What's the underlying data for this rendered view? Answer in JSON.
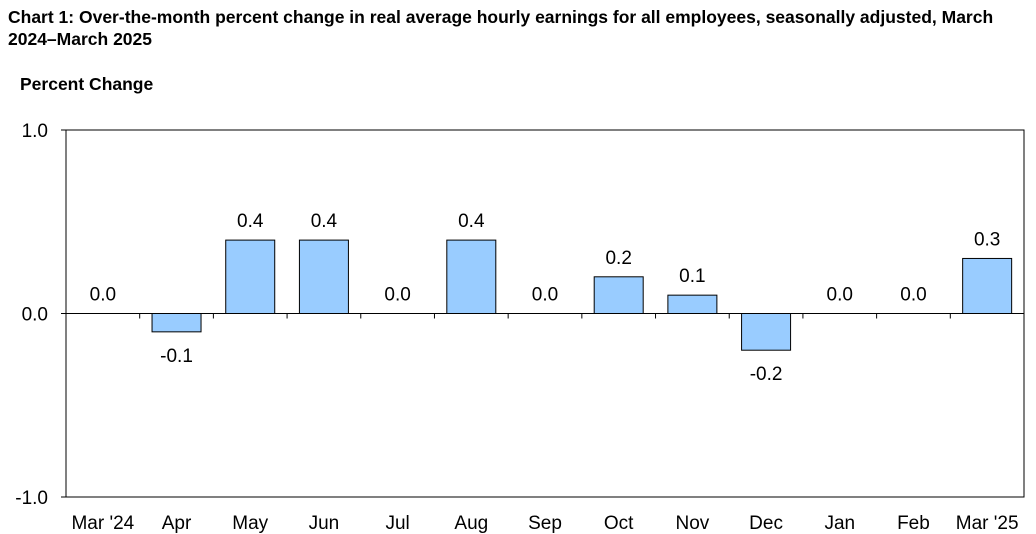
{
  "chart_data": {
    "type": "bar",
    "title": "Chart 1: Over-the-month percent change in real average hourly earnings for all employees, seasonally adjusted, March 2024–March 2025",
    "ylabel": "Percent Change",
    "xlabel": "",
    "categories": [
      "Mar '24",
      "Apr",
      "May",
      "Jun",
      "Jul",
      "Aug",
      "Sep",
      "Oct",
      "Nov",
      "Dec",
      "Jan",
      "Feb",
      "Mar '25"
    ],
    "values": [
      0.0,
      -0.1,
      0.4,
      0.4,
      0.0,
      0.4,
      0.0,
      0.2,
      0.1,
      -0.2,
      0.0,
      0.0,
      0.3
    ],
    "data_labels": [
      "0.0",
      "-0.1",
      "0.4",
      "0.4",
      "0.0",
      "0.4",
      "0.0",
      "0.2",
      "0.1",
      "-0.2",
      "0.0",
      "0.0",
      "0.3"
    ],
    "ylim": [
      -1.0,
      1.0
    ],
    "yticks": [
      -1.0,
      0.0,
      1.0
    ],
    "ytick_labels": [
      "-1.0",
      "0.0",
      "1.0"
    ],
    "grid": false,
    "legend": "none",
    "bar_color": "#99ccff",
    "bar_edge_color": "#000000"
  }
}
